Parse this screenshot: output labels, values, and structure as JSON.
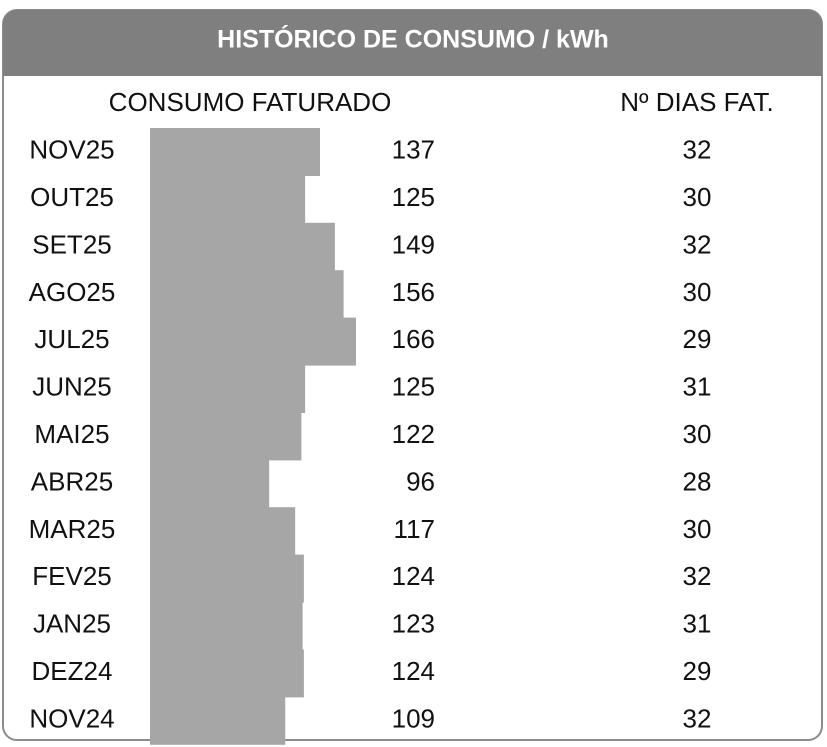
{
  "chart_data": {
    "type": "bar",
    "title": "HISTÓRICO DE CONSUMO / kWh",
    "value_header": "CONSUMO FATURADO",
    "days_header": "Nº DIAS FAT.",
    "categories": [
      "NOV25",
      "OUT25",
      "SET25",
      "AGO25",
      "JUL25",
      "JUN25",
      "MAI25",
      "ABR25",
      "MAR25",
      "FEV25",
      "JAN25",
      "DEZ24",
      "NOV24"
    ],
    "values": [
      137,
      125,
      149,
      156,
      166,
      125,
      122,
      96,
      117,
      124,
      123,
      124,
      109
    ],
    "days": [
      32,
      30,
      32,
      30,
      29,
      31,
      30,
      28,
      30,
      32,
      31,
      29,
      32
    ],
    "color": "#a6a6a6"
  }
}
